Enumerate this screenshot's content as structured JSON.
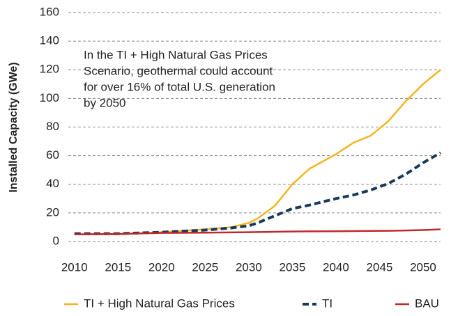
{
  "chart_data": {
    "type": "line",
    "y_label": "Installed Capacity (GWe)",
    "annotation": [
      "In the TI + High Natural Gas Prices",
      "Scenario, geothermal could account",
      "for over 16% of total U.S. generation",
      "by 2050"
    ],
    "x": [
      2010,
      2015,
      2020,
      2025,
      2028,
      2030,
      2031,
      2033,
      2035,
      2037,
      2040,
      2042,
      2044,
      2046,
      2048,
      2050,
      2052
    ],
    "series": [
      {
        "name": "TI + High Natural Gas Prices",
        "color": "#f5b41e",
        "values": [
          5,
          5,
          6.5,
          8.5,
          10,
          13,
          16,
          25,
          40,
          51,
          61,
          69,
          74,
          84,
          98,
          110,
          120
        ]
      },
      {
        "name": "TI",
        "color": "#1a3a5c",
        "dashed": true,
        "values": [
          5.5,
          5.5,
          6.5,
          8,
          9.5,
          11,
          13,
          18,
          23,
          25.5,
          30,
          32.5,
          36,
          40.5,
          47,
          55,
          62
        ]
      },
      {
        "name": "BAU",
        "color": "#c0282d",
        "values": [
          5,
          5.3,
          6,
          6.2,
          6.4,
          6.5,
          6.6,
          6.8,
          7,
          7.1,
          7.2,
          7.3,
          7.4,
          7.5,
          7.7,
          8,
          8.5
        ]
      }
    ],
    "xlim": [
      2009.3,
      2052
    ],
    "xticks": [
      2010,
      2015,
      2020,
      2025,
      2030,
      2035,
      2040,
      2045,
      2050
    ],
    "ylim": [
      0,
      160
    ],
    "yticks": [
      0,
      20,
      40,
      60,
      80,
      100,
      120,
      140,
      160
    ],
    "grid": true,
    "legend": "bottom"
  }
}
